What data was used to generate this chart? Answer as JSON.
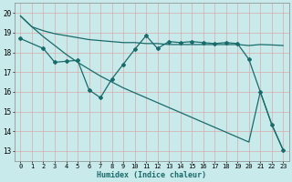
{
  "background_color": "#c8eaea",
  "grid_color": "#c0dada",
  "line_color": "#1a6b6b",
  "x_label": "Humidex (Indice chaleur)",
  "x_ticks": [
    0,
    1,
    2,
    3,
    4,
    5,
    6,
    7,
    8,
    9,
    10,
    11,
    12,
    13,
    14,
    15,
    16,
    17,
    18,
    19,
    20,
    21,
    22,
    23
  ],
  "ylim": [
    12.5,
    20.5
  ],
  "yticks": [
    13,
    14,
    15,
    16,
    17,
    18,
    19,
    20
  ],
  "series_top": {
    "x": [
      0,
      1,
      2,
      3,
      4,
      5,
      6,
      7,
      8,
      9,
      10,
      11,
      12,
      13,
      14,
      15,
      16,
      17,
      18,
      19,
      20,
      21,
      22,
      23
    ],
    "y": [
      19.85,
      19.3,
      19.1,
      18.95,
      18.85,
      18.75,
      18.65,
      18.6,
      18.55,
      18.5,
      18.5,
      18.45,
      18.45,
      18.4,
      18.4,
      18.4,
      18.4,
      18.4,
      18.4,
      18.4,
      18.35,
      18.4,
      18.38,
      18.35
    ]
  },
  "series_mid": {
    "x": [
      0,
      2,
      3,
      4,
      5,
      6,
      7,
      8,
      9,
      10,
      11,
      12,
      13,
      14,
      15,
      16,
      17,
      18,
      19,
      20,
      21,
      22,
      23
    ],
    "y": [
      18.7,
      18.2,
      17.5,
      17.55,
      17.6,
      16.1,
      15.7,
      16.65,
      17.4,
      18.15,
      18.85,
      18.2,
      18.55,
      18.5,
      18.55,
      18.5,
      18.45,
      18.5,
      18.45,
      17.65,
      16.0,
      14.35,
      13.05
    ]
  },
  "series_bot": {
    "x": [
      0,
      1,
      2,
      3,
      4,
      5,
      6,
      7,
      8,
      9,
      10,
      11,
      12,
      13,
      14,
      15,
      16,
      17,
      18,
      19,
      20,
      21,
      22,
      23
    ],
    "y": [
      19.85,
      19.3,
      18.8,
      18.35,
      17.9,
      17.5,
      17.15,
      16.8,
      16.5,
      16.2,
      15.95,
      15.7,
      15.45,
      15.2,
      14.95,
      14.7,
      14.45,
      14.2,
      13.95,
      13.7,
      13.45,
      16.0,
      14.35,
      13.05
    ]
  }
}
